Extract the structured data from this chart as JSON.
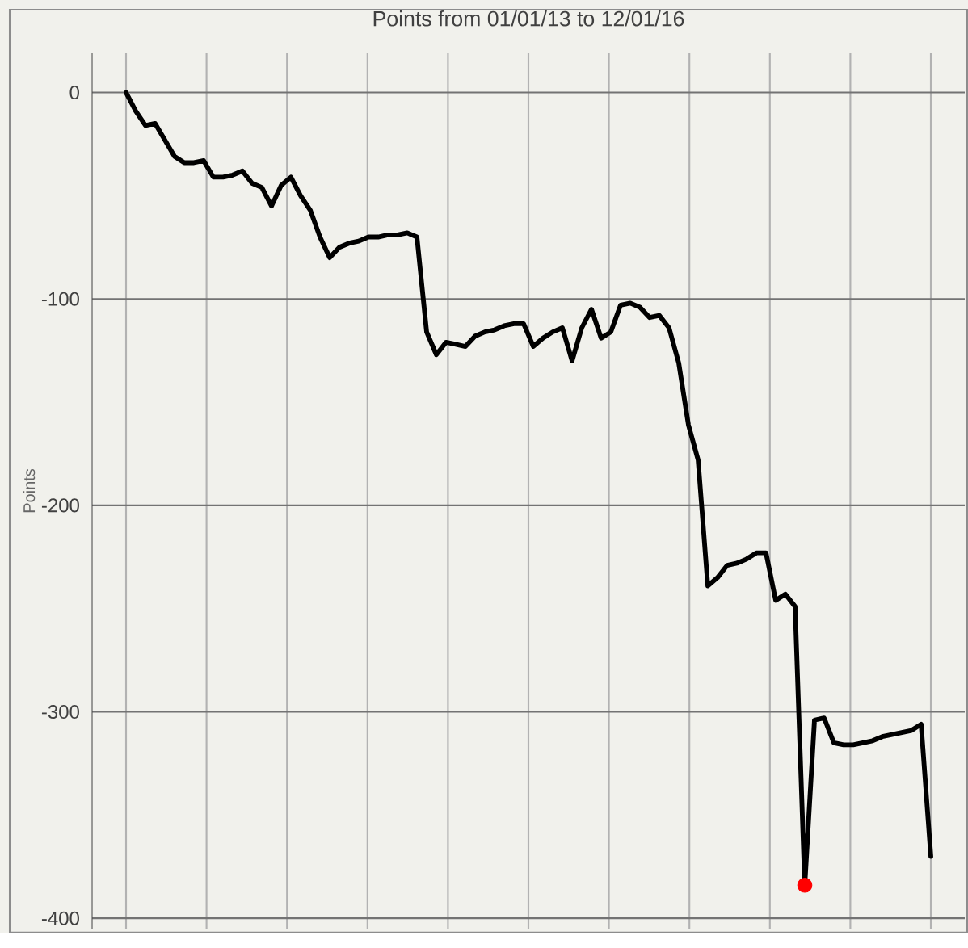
{
  "chart_data": {
    "type": "line",
    "title": "Points from 01/01/13 to 12/01/16",
    "ylabel": "Points",
    "categories": [
      null,
      null,
      null,
      null,
      null,
      null,
      null,
      null,
      null,
      null,
      null,
      null,
      null,
      null,
      null,
      null,
      null,
      null,
      null,
      null,
      null,
      null,
      null,
      null,
      null,
      null,
      null,
      null,
      null,
      null,
      null,
      null,
      null,
      null,
      null,
      null,
      null,
      null,
      null,
      null,
      null,
      null,
      null,
      null,
      null,
      null,
      null,
      null,
      null,
      null,
      null,
      null,
      null,
      null,
      null,
      null,
      null,
      null,
      null,
      null,
      null,
      null,
      null,
      null,
      null,
      null,
      null,
      null,
      null,
      null,
      null,
      null,
      null,
      null,
      null,
      null,
      null,
      null,
      null,
      null,
      null,
      null,
      null,
      null
    ],
    "ylim": [
      -405,
      19
    ],
    "yticks": [
      0,
      -100,
      -200,
      -300,
      -400
    ],
    "grid": true,
    "tick_labels": "y",
    "series": [
      {
        "color": "#000000",
        "values": [
          0,
          -9,
          -16,
          -15,
          -23,
          -31,
          -34,
          -34,
          -33,
          -41,
          -41,
          -40,
          -38,
          -44,
          -46,
          -55,
          -45,
          -41,
          -50,
          -57,
          -70,
          -80,
          -75,
          -73,
          -72,
          -70,
          -70,
          -69,
          -69,
          -68,
          -70,
          -116,
          -127,
          -121,
          -122,
          -123,
          -118,
          -116,
          -115,
          -113,
          -112,
          -112,
          -123,
          -119,
          -116,
          -114,
          -130,
          -114,
          -105,
          -119,
          -116,
          -103,
          -102,
          -104,
          -109,
          -108,
          -114,
          -131,
          -161,
          -178,
          -239,
          -235,
          -229,
          -228,
          -226,
          -223,
          -223,
          -246,
          -243,
          -249,
          -384,
          -304,
          -303,
          -315,
          -316,
          -316,
          -315,
          -314,
          -312,
          -311,
          -310,
          -309,
          -306,
          -370
        ]
      },
      {
        "type": "scatter",
        "color": "#ff0000",
        "values": [
          null,
          null,
          null,
          null,
          null,
          null,
          null,
          null,
          null,
          null,
          null,
          null,
          null,
          null,
          null,
          null,
          null,
          null,
          null,
          null,
          null,
          null,
          null,
          null,
          null,
          null,
          null,
          null,
          null,
          null,
          null,
          null,
          null,
          null,
          null,
          null,
          null,
          null,
          null,
          null,
          null,
          null,
          null,
          null,
          null,
          null,
          null,
          null,
          null,
          null,
          null,
          null,
          null,
          null,
          null,
          null,
          null,
          null,
          null,
          null,
          null,
          null,
          null,
          null,
          null,
          null,
          null,
          null,
          null,
          null,
          -384,
          null,
          null,
          null,
          null,
          null,
          null,
          null,
          null,
          null,
          null,
          null,
          null,
          null
        ]
      }
    ]
  }
}
